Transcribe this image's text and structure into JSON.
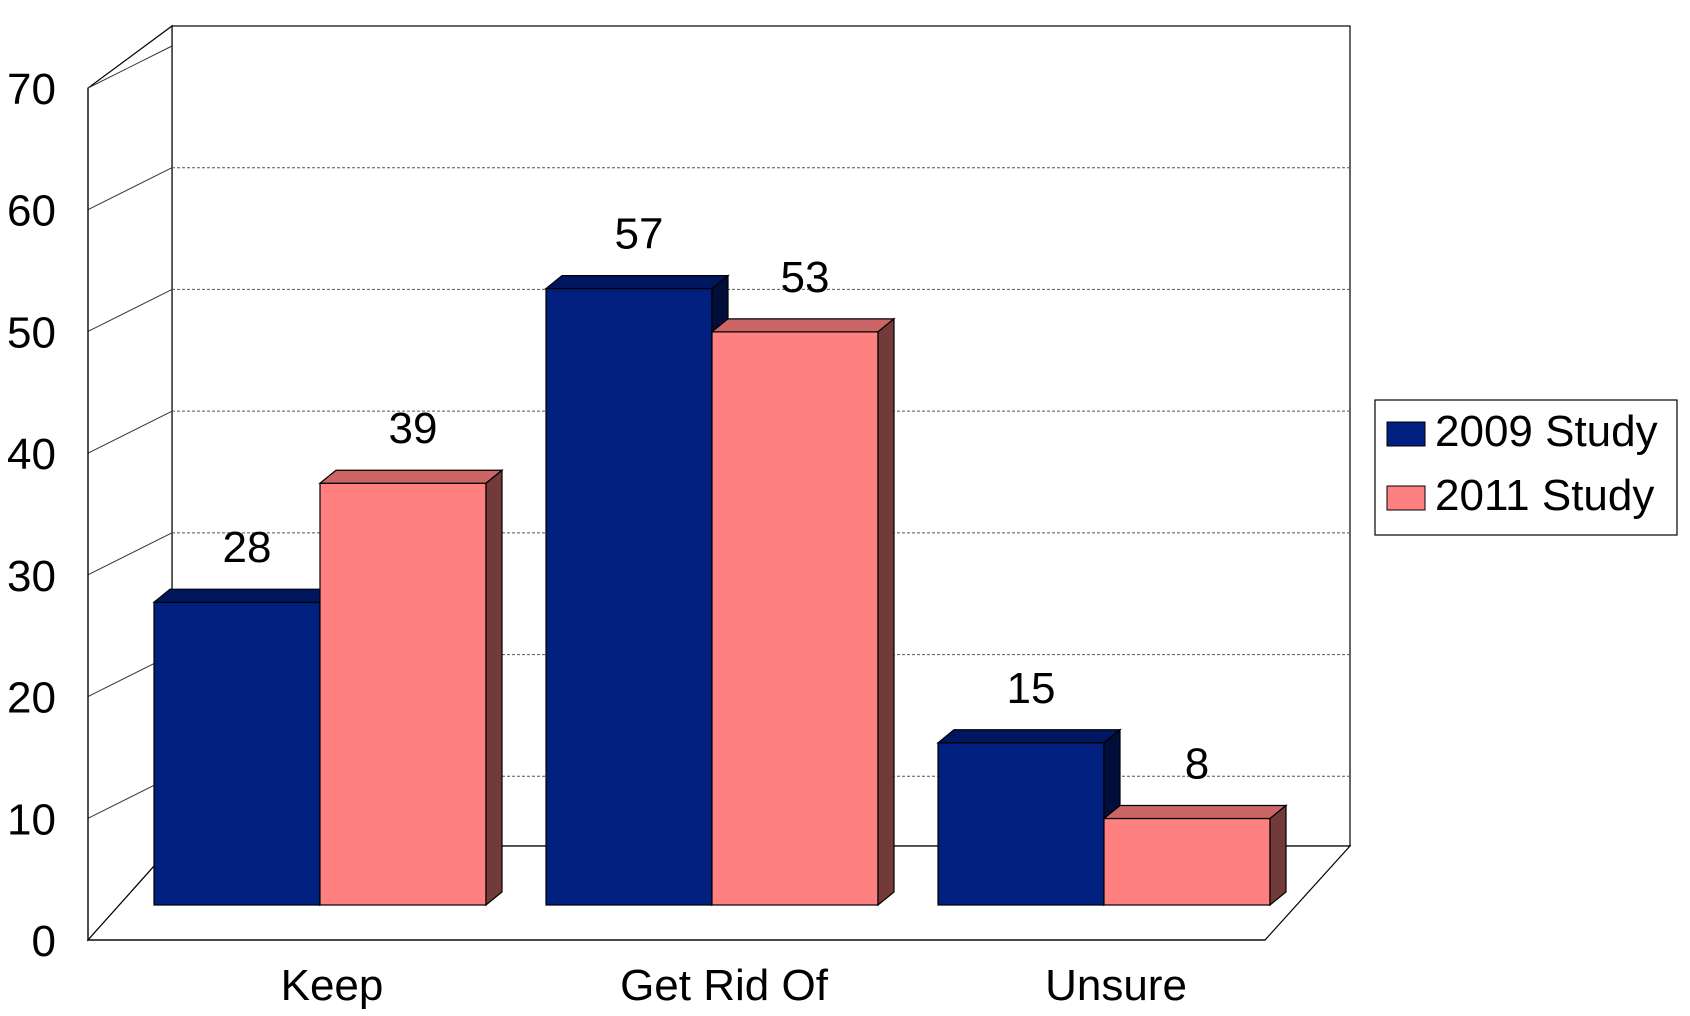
{
  "chart_data": {
    "type": "bar",
    "title": "",
    "xlabel": "",
    "ylabel": "",
    "categories": [
      "Keep",
      "Get Rid Of",
      "Unsure"
    ],
    "series": [
      {
        "name": "2009 Study",
        "values": [
          28,
          57,
          15
        ],
        "color": "#001F7E"
      },
      {
        "name": "2011 Study",
        "values": [
          39,
          53,
          8
        ],
        "color": "#FF8080"
      }
    ],
    "ylim": [
      0,
      70
    ],
    "yticks": [
      "0",
      "10",
      "20",
      "30",
      "40",
      "50",
      "60",
      "70"
    ],
    "data_labels": [
      [
        "28",
        "57",
        "15"
      ],
      [
        "39",
        "53",
        "8"
      ]
    ],
    "grid": true,
    "three_d": true,
    "legend_position": "right"
  }
}
